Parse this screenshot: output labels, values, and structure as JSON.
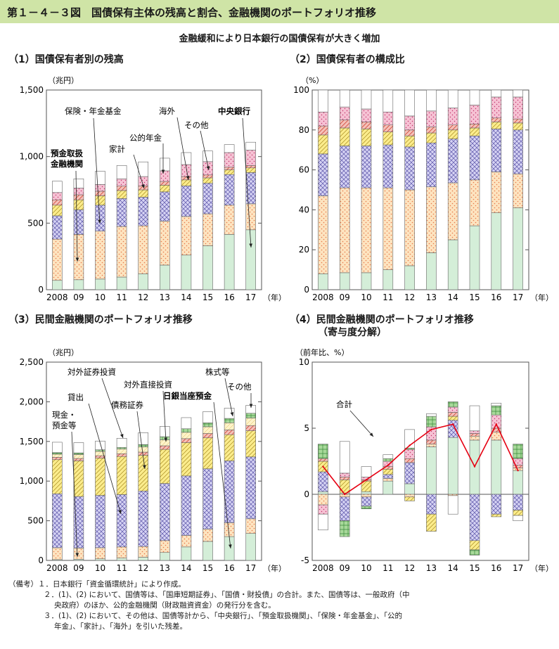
{
  "figure_number": "第１－４－３図",
  "figure_title": "国債保有主体の残高と割合、金融機関のポートフォリオ推移",
  "subtitle": "金融緩和により日本銀行の国債保有が大きく増加",
  "year_unit": "（年）",
  "colors": {
    "header": "#cfe4a6",
    "green": "#d4eed8",
    "pink": "#f6c2d4",
    "lightyellow": "#fff3c8",
    "orange": "#fde4c0",
    "blue": "#d6d3f4",
    "yellow": "#fbec8c",
    "darkgreen": "#a8d99a",
    "red": "#f4c0b8",
    "line": "#e60012"
  },
  "panels": {
    "p1": {
      "title": "（1）国債保有者別の残高",
      "unit": "（兆円）"
    },
    "p2": {
      "title": "（2）国債保有者の構成比",
      "unit": "（%）"
    },
    "p3": {
      "title": "（3）民間金融機関のポートフォリオ推移",
      "unit": "（兆円）"
    },
    "p4": {
      "title": "（4）民間金融機関のポートフォリオ推移",
      "title2": "（寄与度分解）",
      "unit": "（前年比、%）"
    }
  },
  "annotations": {
    "p1": [
      "預金取扱",
      "金融機関",
      "保険・年金基金",
      "家計",
      "公的年金",
      "海外",
      "その他",
      "中央銀行"
    ],
    "p3": [
      "現金・",
      "預金等",
      "貸出",
      "対外証券投資",
      "債務証券",
      "対外直接投資",
      "日銀当座預金",
      "株式等",
      "その他"
    ],
    "p4": [
      "合計"
    ]
  },
  "chart_data": [
    {
      "type": "bar",
      "stacked": true,
      "title": "（1）国債保有者別の残高",
      "ylabel": "（兆円）",
      "ylim": [
        0,
        1500
      ],
      "yticks": [
        "0",
        "500",
        "1,000",
        "1,500"
      ],
      "categories": [
        "2008",
        "09",
        "10",
        "11",
        "12",
        "13",
        "14",
        "15",
        "16",
        "17"
      ],
      "series": [
        {
          "name": "中央銀行",
          "values": [
            70,
            75,
            80,
            95,
            120,
            185,
            260,
            330,
            415,
            450
          ]
        },
        {
          "name": "預金取扱金融機関",
          "values": [
            310,
            340,
            360,
            380,
            360,
            330,
            290,
            240,
            220,
            195
          ]
        },
        {
          "name": "保険・年金基金",
          "values": [
            175,
            185,
            195,
            210,
            215,
            220,
            230,
            230,
            230,
            235
          ]
        },
        {
          "name": "公的年金",
          "values": [
            80,
            75,
            70,
            60,
            55,
            50,
            45,
            40,
            35,
            35
          ]
        },
        {
          "name": "家計",
          "values": [
            40,
            38,
            35,
            33,
            30,
            28,
            25,
            22,
            20,
            18
          ]
        },
        {
          "name": "海外",
          "values": [
            55,
            50,
            50,
            55,
            70,
            80,
            90,
            100,
            110,
            115
          ]
        },
        {
          "name": "その他",
          "values": [
            85,
            70,
            100,
            100,
            110,
            95,
            90,
            80,
            60,
            60
          ]
        }
      ]
    },
    {
      "type": "bar",
      "stacked": true,
      "title": "（2）国債保有者の構成比",
      "ylabel": "（%）",
      "ylim": [
        0,
        100
      ],
      "yticks": [
        "0",
        "20",
        "40",
        "60",
        "80",
        "100"
      ],
      "categories": [
        "2008",
        "09",
        "10",
        "11",
        "12",
        "13",
        "14",
        "15",
        "16",
        "17"
      ],
      "series": [
        {
          "name": "中央銀行",
          "values": [
            8,
            8.5,
            8.5,
            10,
            12,
            18.5,
            25,
            32,
            38.5,
            41
          ]
        },
        {
          "name": "預金取扱金融機関",
          "values": [
            39,
            42.5,
            42.5,
            41,
            38,
            33,
            28.5,
            23,
            20.5,
            17
          ]
        },
        {
          "name": "保険・年金基金",
          "values": [
            21,
            21,
            21,
            21.5,
            21.5,
            22,
            22,
            22,
            21.5,
            22
          ]
        },
        {
          "name": "公的年金",
          "values": [
            9.5,
            9,
            8.5,
            6.5,
            5.5,
            5,
            4.5,
            4,
            3.5,
            3.5
          ]
        },
        {
          "name": "家計",
          "values": [
            4.5,
            4,
            3.5,
            3.5,
            3,
            3,
            2.5,
            2,
            2,
            2
          ]
        },
        {
          "name": "海外",
          "values": [
            7,
            6.5,
            6.5,
            6.5,
            7,
            8,
            8.5,
            9.5,
            10.5,
            11
          ]
        },
        {
          "name": "その他",
          "values": [
            11,
            8.5,
            9.5,
            11,
            13,
            10.5,
            9,
            7.5,
            3.5,
            3.5
          ]
        }
      ]
    },
    {
      "type": "bar",
      "stacked": true,
      "title": "（3）民間金融機関のポートフォリオ推移",
      "ylabel": "（兆円）",
      "ylim": [
        0,
        2500
      ],
      "yticks": [
        "0",
        "500",
        "1,000",
        "1,500",
        "2,000",
        "2,500"
      ],
      "categories": [
        "2008",
        "09",
        "10",
        "11",
        "12",
        "13",
        "14",
        "15",
        "16",
        "17"
      ],
      "series": [
        {
          "name": "日銀当座預金",
          "values": [
            10,
            15,
            20,
            30,
            40,
            100,
            170,
            240,
            300,
            340
          ]
        },
        {
          "name": "現金・預金等",
          "values": [
            150,
            140,
            140,
            140,
            135,
            150,
            145,
            155,
            175,
            185
          ]
        },
        {
          "name": "貸出",
          "values": [
            680,
            650,
            660,
            660,
            700,
            720,
            750,
            760,
            780,
            780
          ]
        },
        {
          "name": "債務証券",
          "values": [
            430,
            450,
            470,
            480,
            450,
            430,
            420,
            390,
            330,
            330
          ]
        },
        {
          "name": "対外直接投資",
          "values": [
            30,
            30,
            30,
            35,
            40,
            45,
            50,
            55,
            60,
            65
          ]
        },
        {
          "name": "対外証券投資",
          "values": [
            40,
            50,
            55,
            60,
            65,
            75,
            80,
            85,
            90,
            95
          ]
        },
        {
          "name": "株式等",
          "values": [
            20,
            20,
            20,
            20,
            30,
            40,
            45,
            50,
            55,
            60
          ]
        },
        {
          "name": "その他",
          "values": [
            130,
            130,
            110,
            115,
            150,
            130,
            140,
            140,
            130,
            100
          ]
        }
      ]
    },
    {
      "type": "bar",
      "stacked": true,
      "title": "（4）民間金融機関のポートフォリオ推移（寄与度分解）",
      "ylabel": "（前年比、%）",
      "ylim": [
        -5,
        10
      ],
      "yticks": [
        "-5",
        "0",
        "5",
        "10"
      ],
      "categories": [
        "2008",
        "09",
        "10",
        "11",
        "12",
        "13",
        "14",
        "15",
        "16",
        "17"
      ],
      "series": [
        {
          "name": "日銀当座預金",
          "values": [
            0.2,
            0.1,
            0.2,
            1.0,
            0.8,
            3.6,
            4.3,
            4.1,
            4.1,
            1.8
          ]
        },
        {
          "name": "現金・預金等",
          "values": [
            -0.8,
            -0.2,
            -0.2,
            0.2,
            -0.2,
            0.2,
            -0.1,
            0.3,
            0.6,
            0.2
          ]
        },
        {
          "name": "貸出",
          "values": [
            1.5,
            -1.8,
            -0.7,
            0.3,
            1.6,
            -1.5,
            1.3,
            -3.5,
            -1.5,
            -1.2
          ]
        },
        {
          "name": "債務証券",
          "values": [
            0.8,
            1.0,
            0.8,
            0.4,
            -0.3,
            -1.3,
            0.3,
            -0.7,
            -0.2,
            -0.4
          ]
        },
        {
          "name": "対外直接投資",
          "values": [
            0.2,
            0.2,
            0.1,
            0.2,
            0.3,
            0.3,
            0.3,
            0.2,
            0.3,
            0.2
          ]
        },
        {
          "name": "対外証券投資",
          "values": [
            -0.7,
            0.3,
            0.2,
            0.4,
            0.7,
            1.0,
            0.4,
            0.2,
            1.0,
            0.5
          ]
        },
        {
          "name": "株式等",
          "values": [
            1.1,
            -1.2,
            -0.2,
            0.2,
            0.1,
            0.8,
            0.4,
            -0.4,
            0.7,
            1.1
          ]
        },
        {
          "name": "その他",
          "values": [
            -1.2,
            2.4,
            0.8,
            0.3,
            1.4,
            0.2,
            -1.4,
            1.9,
            0.2,
            -0.4
          ]
        }
      ],
      "line": {
        "name": "合計",
        "values": [
          2.1,
          0.0,
          1.1,
          2.2,
          3.7,
          4.9,
          5.3,
          2.1,
          5.3,
          1.8
        ]
      }
    }
  ],
  "notes": [
    "（備考）１．日本銀行「資金循環統計」により作成。",
    "２．(1)、(2) において、国債等は、「国庫短期証券」、「国債・財投債」の合計。また、国債等は、一般政府（中",
    "央政府）のほか、公的金融機関（財政融資資金）の発行分を含む。",
    "３．(1)、(2) において、その他は、国債等計から、「中央銀行」、「預金取扱機関」、「保険・年金基金」、「公的",
    "年金」、「家計」、「海外」を引いた残差。"
  ]
}
